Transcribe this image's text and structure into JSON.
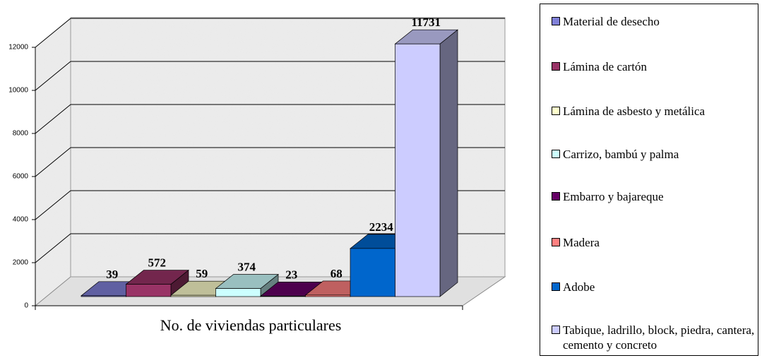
{
  "chart_data": {
    "type": "bar3d",
    "categories": [
      "No. de viviendas particulares"
    ],
    "series": [
      {
        "name": "Material de desecho",
        "color": "#8080d8",
        "values": [
          39
        ]
      },
      {
        "name": "Lámina de cartón",
        "color": "#993366",
        "values": [
          572
        ]
      },
      {
        "name": "Lámina de asbesto y metálica",
        "color": "#ffffcc",
        "values": [
          59
        ]
      },
      {
        "name": "Carrizo, bambú y palma",
        "color": "#ccffff",
        "values": [
          374
        ]
      },
      {
        "name": "Embarro y bajareque",
        "color": "#660066",
        "values": [
          23
        ]
      },
      {
        "name": "Madera",
        "color": "#ff8080",
        "values": [
          68
        ]
      },
      {
        "name": "Adobe",
        "color": "#0066cc",
        "values": [
          2234
        ]
      },
      {
        "name": "Tabique, ladrillo, block, piedra, cantera, cemento y concreto",
        "color": "#ccccff",
        "values": [
          11731
        ]
      }
    ],
    "ylim": [
      0,
      12000
    ],
    "yticks": [
      0,
      2000,
      4000,
      6000,
      8000,
      10000,
      12000
    ],
    "grid": true,
    "legend": "right"
  }
}
